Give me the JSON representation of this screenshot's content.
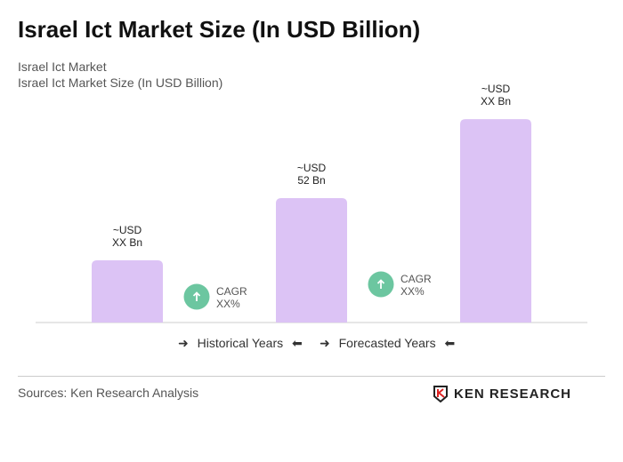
{
  "title": "Israel Ict Market Size (In USD Billion)",
  "subtitle1": "Israel Ict Market",
  "subtitle2": "Israel Ict Market Size (In USD Billion)",
  "chart_data": {
    "type": "bar",
    "categories": [
      "",
      "",
      ""
    ],
    "values": [
      26,
      52,
      85
    ],
    "data_labels": [
      [
        "~USD",
        "XX Bn"
      ],
      [
        "~USD",
        "52 Bn"
      ],
      [
        "~USD",
        "XX Bn"
      ]
    ],
    "bar_color": "#dcc3f5",
    "cagr": [
      {
        "line1": "CAGR",
        "line2": "XX%"
      },
      {
        "line1": "CAGR",
        "line2": "XX%"
      }
    ],
    "cagr_color": "#6cc6a0",
    "grid": false
  },
  "legend": {
    "historical": "Historical Years",
    "forecasted": "Forecasted Years"
  },
  "sources": "Sources: Ken Research Analysis",
  "logo": "KEN RESEARCH"
}
